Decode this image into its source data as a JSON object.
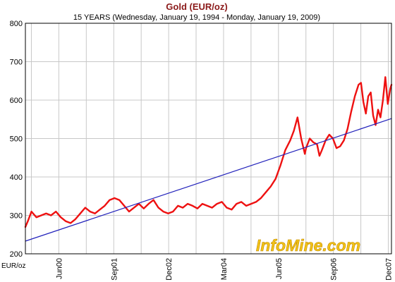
{
  "chart_data": {
    "type": "line",
    "title": "Gold (EUR/oz)",
    "subtitle": "15 YEARS (Wednesday, January 19, 1994  -  Monday, January 19, 2009)",
    "ylabel": "EUR/oz",
    "ylim": [
      200,
      800
    ],
    "y_ticks": [
      200,
      300,
      400,
      500,
      600,
      700,
      800
    ],
    "xlim": [
      1994.05,
      2009.05
    ],
    "x_ticks": [
      {
        "label": "Jun00",
        "x": 1995.42
      },
      {
        "label": "Sep01",
        "x": 1997.67
      },
      {
        "label": "Dec02",
        "x": 1999.92
      },
      {
        "label": "Mar04",
        "x": 2002.17
      },
      {
        "label": "Jun05",
        "x": 2004.42
      },
      {
        "label": "Sep06",
        "x": 2006.67
      },
      {
        "label": "Dec07",
        "x": 2008.92
      }
    ],
    "grid": true,
    "series": [
      {
        "color": "#ee1111",
        "x": [
          1994.05,
          1994.15,
          1994.3,
          1994.5,
          1994.7,
          1994.9,
          1995.1,
          1995.3,
          1995.5,
          1995.7,
          1995.9,
          1996.1,
          1996.3,
          1996.5,
          1996.7,
          1996.9,
          1997.1,
          1997.3,
          1997.5,
          1997.7,
          1997.9,
          1998.1,
          1998.3,
          1998.5,
          1998.7,
          1998.9,
          1999.1,
          1999.3,
          1999.5,
          1999.7,
          1999.9,
          2000.1,
          2000.3,
          2000.5,
          2000.7,
          2000.9,
          2001.1,
          2001.3,
          2001.5,
          2001.7,
          2001.9,
          2002.1,
          2002.3,
          2002.5,
          2002.7,
          2002.9,
          2003.1,
          2003.3,
          2003.5,
          2003.7,
          2003.9,
          2004.1,
          2004.3,
          2004.5,
          2004.7,
          2004.9,
          2005.05,
          2005.2,
          2005.35,
          2005.5,
          2005.55,
          2005.7,
          2005.85,
          2006.0,
          2006.1,
          2006.2,
          2006.35,
          2006.5,
          2006.65,
          2006.8,
          2006.95,
          2007.1,
          2007.25,
          2007.4,
          2007.55,
          2007.7,
          2007.8,
          2007.9,
          2008.0,
          2008.1,
          2008.2,
          2008.3,
          2008.4,
          2008.5,
          2008.6,
          2008.7,
          2008.8,
          2008.9,
          2009.0,
          2009.05
        ],
        "y": [
          270,
          285,
          310,
          295,
          300,
          305,
          300,
          310,
          295,
          285,
          280,
          290,
          305,
          320,
          310,
          305,
          315,
          325,
          340,
          345,
          340,
          325,
          310,
          320,
          330,
          318,
          330,
          340,
          320,
          310,
          305,
          310,
          325,
          320,
          330,
          325,
          318,
          330,
          325,
          320,
          330,
          335,
          320,
          315,
          330,
          335,
          325,
          330,
          335,
          345,
          360,
          375,
          395,
          430,
          470,
          495,
          520,
          555,
          500,
          460,
          475,
          500,
          490,
          485,
          455,
          470,
          495,
          510,
          500,
          475,
          480,
          495,
          525,
          570,
          610,
          640,
          645,
          595,
          565,
          610,
          620,
          560,
          535,
          575,
          555,
          600,
          660,
          590,
          630,
          640
        ]
      },
      {
        "color": "#2222bb",
        "x": [
          1994.05,
          2009.05
        ],
        "y": [
          233,
          552
        ]
      }
    ]
  },
  "branding": {
    "watermark": "InfoMine.com"
  }
}
